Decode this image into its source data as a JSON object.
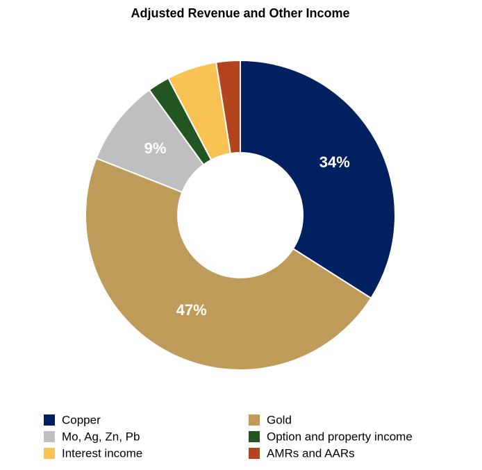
{
  "chart_data": {
    "type": "donut",
    "title": "Adjusted Revenue and Other Income",
    "categories": [
      "Copper",
      "Gold",
      "Mo, Ag, Zn, Pb",
      "Option and property income",
      "Interest income",
      "AMRs and AARs"
    ],
    "values": [
      34,
      47,
      9,
      2.3,
      5.2,
      2.5
    ],
    "value_labels": [
      "34%",
      "47%",
      "9%",
      null,
      null,
      null
    ],
    "colors": [
      "#002060",
      "#bf9b5a",
      "#bfbfbf",
      "#235523",
      "#f9c353",
      "#b2441e"
    ]
  }
}
